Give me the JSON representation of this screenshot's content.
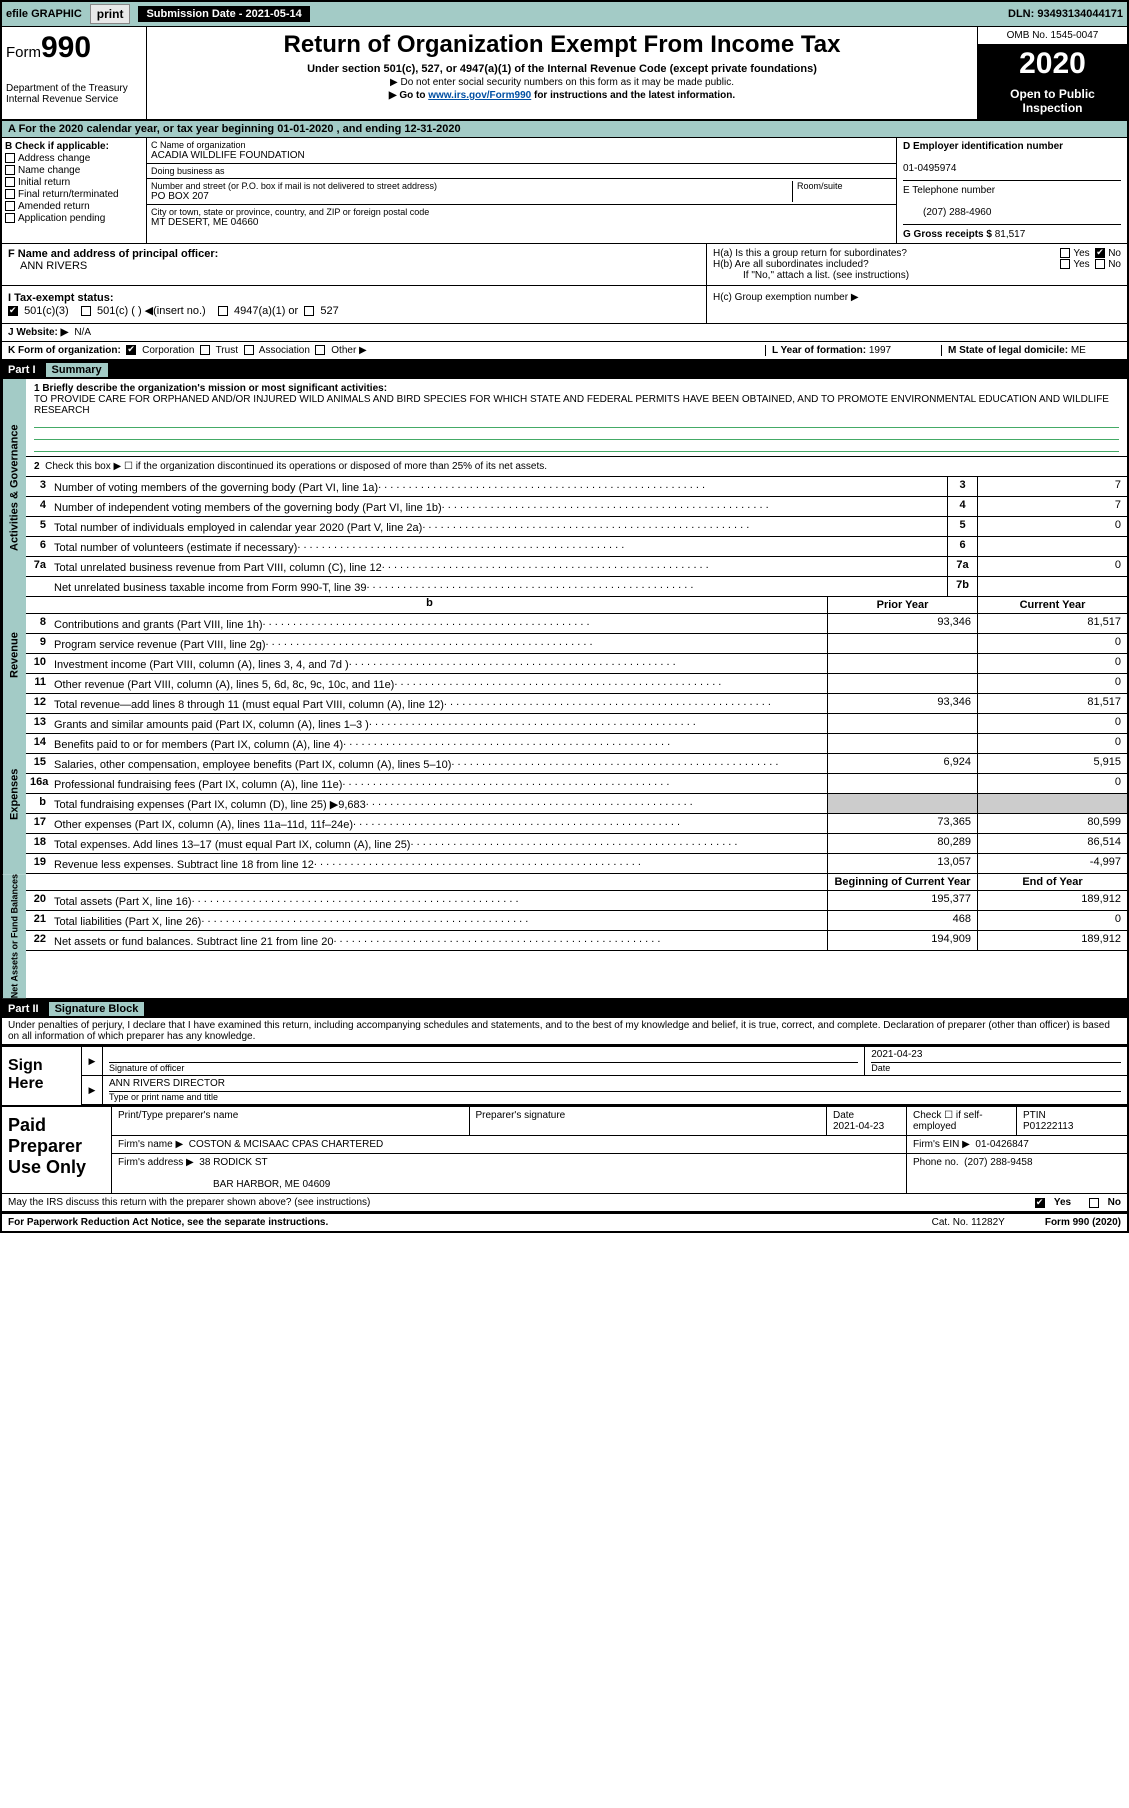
{
  "top": {
    "efile": "efile GRAPHIC",
    "print": "print",
    "submission_label": "Submission Date - 2021-05-14",
    "dln": "DLN: 93493134044171"
  },
  "header": {
    "form_label": "Form",
    "form_num": "990",
    "dept1": "Department of the Treasury",
    "dept2": "Internal Revenue Service",
    "title": "Return of Organization Exempt From Income Tax",
    "subtitle": "Under section 501(c), 527, or 4947(a)(1) of the Internal Revenue Code (except private foundations)",
    "note1": "▶ Do not enter social security numbers on this form as it may be made public.",
    "note2_pre": "▶ Go to ",
    "note2_url": "www.irs.gov/Form990",
    "note2_post": " for instructions and the latest information.",
    "omb": "OMB No. 1545-0047",
    "year": "2020",
    "inspection": "Open to Public Inspection"
  },
  "period": "A For the 2020 calendar year, or tax year beginning 01-01-2020    , and ending 12-31-2020",
  "B": {
    "label": "B Check if applicable:",
    "opts": [
      "Address change",
      "Name change",
      "Initial return",
      "Final return/terminated",
      "Amended return",
      "Application pending"
    ]
  },
  "C": {
    "name_lbl": "C Name of organization",
    "name": "ACADIA WILDLIFE FOUNDATION",
    "dba_lbl": "Doing business as",
    "dba": "",
    "addr_lbl": "Number and street (or P.O. box if mail is not delivered to street address)",
    "addr": "PO BOX 207",
    "room_lbl": "Room/suite",
    "city_lbl": "City or town, state or province, country, and ZIP or foreign postal code",
    "city": "MT DESERT, ME  04660"
  },
  "D": {
    "ein_lbl": "D Employer identification number",
    "ein": "01-0495974",
    "tel_lbl": "E Telephone number",
    "tel": "(207) 288-4960",
    "gross_lbl": "G Gross receipts $",
    "gross": "81,517"
  },
  "F": {
    "lbl": "F  Name and address of principal officer:",
    "name": "ANN RIVERS"
  },
  "H": {
    "a": "H(a)  Is this a group return for subordinates?",
    "b": "H(b)  Are all subordinates included?",
    "b_note": "If \"No,\" attach a list. (see instructions)",
    "c": "H(c)  Group exemption number ▶",
    "yes": "Yes",
    "no": "No"
  },
  "I": {
    "lbl": "I  Tax-exempt status:",
    "o1": "501(c)(3)",
    "o2": "501(c) (  ) ◀(insert no.)",
    "o3": "4947(a)(1) or",
    "o4": "527"
  },
  "J": {
    "lbl": "J  Website: ▶",
    "val": "N/A"
  },
  "K": {
    "lbl": "K Form of organization:",
    "opts": [
      "Corporation",
      "Trust",
      "Association",
      "Other ▶"
    ]
  },
  "L": {
    "lbl": "L Year of formation:",
    "val": "1997"
  },
  "M": {
    "lbl": "M State of legal domicile:",
    "val": "ME"
  },
  "part1": {
    "label": "Part I",
    "title": "Summary",
    "q1_lbl": "1  Briefly describe the organization's mission or most significant activities:",
    "q1_txt": "TO PROVIDE CARE FOR ORPHANED AND/OR INJURED WILD ANIMALS AND BIRD SPECIES FOR WHICH STATE AND FEDERAL PERMITS HAVE BEEN OBTAINED, AND TO PROMOTE ENVIRONMENTAL EDUCATION AND WILDLIFE RESEARCH",
    "q2": "Check this box ▶ ☐  if the organization discontinued its operations or disposed of more than 25% of its net assets.",
    "vtab1": "Activities & Governance",
    "vtab2": "Revenue",
    "vtab3": "Expenses",
    "vtab4": "Net Assets or Fund Balances",
    "lines_gov": [
      {
        "n": "3",
        "t": "Number of voting members of the governing body (Part VI, line 1a)",
        "b": "3",
        "v": "7"
      },
      {
        "n": "4",
        "t": "Number of independent voting members of the governing body (Part VI, line 1b)",
        "b": "4",
        "v": "7"
      },
      {
        "n": "5",
        "t": "Total number of individuals employed in calendar year 2020 (Part V, line 2a)",
        "b": "5",
        "v": "0"
      },
      {
        "n": "6",
        "t": "Total number of volunteers (estimate if necessary)",
        "b": "6",
        "v": ""
      },
      {
        "n": "7a",
        "t": "Total unrelated business revenue from Part VIII, column (C), line 12",
        "b": "7a",
        "v": "0"
      },
      {
        "n": "",
        "t": "Net unrelated business taxable income from Form 990-T, line 39",
        "b": "7b",
        "v": ""
      }
    ],
    "col_prior": "Prior Year",
    "col_curr": "Current Year",
    "lines_rev": [
      {
        "n": "8",
        "t": "Contributions and grants (Part VIII, line 1h)",
        "p": "93,346",
        "c": "81,517"
      },
      {
        "n": "9",
        "t": "Program service revenue (Part VIII, line 2g)",
        "p": "",
        "c": "0"
      },
      {
        "n": "10",
        "t": "Investment income (Part VIII, column (A), lines 3, 4, and 7d )",
        "p": "",
        "c": "0"
      },
      {
        "n": "11",
        "t": "Other revenue (Part VIII, column (A), lines 5, 6d, 8c, 9c, 10c, and 11e)",
        "p": "",
        "c": "0"
      },
      {
        "n": "12",
        "t": "Total revenue—add lines 8 through 11 (must equal Part VIII, column (A), line 12)",
        "p": "93,346",
        "c": "81,517"
      }
    ],
    "lines_exp": [
      {
        "n": "13",
        "t": "Grants and similar amounts paid (Part IX, column (A), lines 1–3 )",
        "p": "",
        "c": "0"
      },
      {
        "n": "14",
        "t": "Benefits paid to or for members (Part IX, column (A), line 4)",
        "p": "",
        "c": "0"
      },
      {
        "n": "15",
        "t": "Salaries, other compensation, employee benefits (Part IX, column (A), lines 5–10)",
        "p": "6,924",
        "c": "5,915"
      },
      {
        "n": "16a",
        "t": "Professional fundraising fees (Part IX, column (A), line 11e)",
        "p": "",
        "c": "0"
      },
      {
        "n": "b",
        "t": "Total fundraising expenses (Part IX, column (D), line 25) ▶9,683",
        "p": "shade",
        "c": "shade"
      },
      {
        "n": "17",
        "t": "Other expenses (Part IX, column (A), lines 11a–11d, 11f–24e)",
        "p": "73,365",
        "c": "80,599"
      },
      {
        "n": "18",
        "t": "Total expenses. Add lines 13–17 (must equal Part IX, column (A), line 25)",
        "p": "80,289",
        "c": "86,514"
      },
      {
        "n": "19",
        "t": "Revenue less expenses. Subtract line 18 from line 12",
        "p": "13,057",
        "c": "-4,997"
      }
    ],
    "col_beg": "Beginning of Current Year",
    "col_end": "End of Year",
    "lines_net": [
      {
        "n": "20",
        "t": "Total assets (Part X, line 16)",
        "p": "195,377",
        "c": "189,912"
      },
      {
        "n": "21",
        "t": "Total liabilities (Part X, line 26)",
        "p": "468",
        "c": "0"
      },
      {
        "n": "22",
        "t": "Net assets or fund balances. Subtract line 21 from line 20",
        "p": "194,909",
        "c": "189,912"
      }
    ]
  },
  "part2": {
    "label": "Part II",
    "title": "Signature Block",
    "declare": "Under penalties of perjury, I declare that I have examined this return, including accompanying schedules and statements, and to the best of my knowledge and belief, it is true, correct, and complete. Declaration of preparer (other than officer) is based on all information of which preparer has any knowledge.",
    "sign_here": "Sign Here",
    "sig_officer_lbl": "Signature of officer",
    "sig_date_lbl": "Date",
    "sig_date": "2021-04-23",
    "sig_name": "ANN RIVERS  DIRECTOR",
    "sig_type_lbl": "Type or print name and title",
    "paid_prep": "Paid Preparer Use Only",
    "pp_name_lbl": "Print/Type preparer's name",
    "pp_sig_lbl": "Preparer's signature",
    "pp_date_lbl": "Date",
    "pp_date": "2021-04-23",
    "pp_check_lbl": "Check ☐ if self-employed",
    "pp_ptin_lbl": "PTIN",
    "pp_ptin": "P01222113",
    "firm_name_lbl": "Firm's name     ▶",
    "firm_name": "COSTON & MCISAAC CPAS CHARTERED",
    "firm_ein_lbl": "Firm's EIN ▶",
    "firm_ein": "01-0426847",
    "firm_addr_lbl": "Firm's address ▶",
    "firm_addr1": "38 RODICK ST",
    "firm_addr2": "BAR HARBOR, ME  04609",
    "firm_phone_lbl": "Phone no.",
    "firm_phone": "(207) 288-9458",
    "discuss": "May the IRS discuss this return with the preparer shown above? (see instructions)",
    "discuss_yes": "Yes",
    "discuss_no": "No"
  },
  "footer": {
    "pra": "For Paperwork Reduction Act Notice, see the separate instructions.",
    "cat": "Cat. No. 11282Y",
    "form": "Form 990 (2020)"
  }
}
